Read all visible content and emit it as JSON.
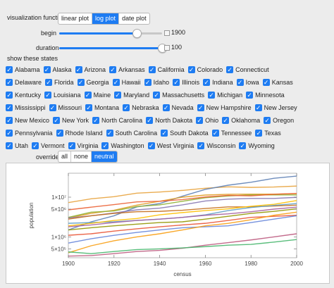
{
  "controls": {
    "viz_label": "visualization function",
    "viz_options": [
      "linear plot",
      "log plot",
      "date plot"
    ],
    "viz_selected": 1,
    "begin_label": "begin",
    "begin_value": "1900",
    "begin_fraction": 0.75,
    "duration_label": "duration",
    "duration_value": "100",
    "duration_fraction": 1.0,
    "states_label": "show these states",
    "override_label": "override",
    "override_options": [
      "all",
      "none",
      "neutral"
    ],
    "override_selected": 2
  },
  "states": [
    [
      "Alabama",
      "Alaska",
      "Arizona",
      "Arkansas",
      "California",
      "Colorado",
      "Connecticut"
    ],
    [
      "Delaware",
      "Florida",
      "Georgia",
      "Hawaii",
      "Idaho",
      "Illinois",
      "Indiana",
      "Iowa",
      "Kansas"
    ],
    [
      "Kentucky",
      "Louisiana",
      "Maine",
      "Maryland",
      "Massachusetts",
      "Michigan",
      "Minnesota"
    ],
    [
      "Mississippi",
      "Missouri",
      "Montana",
      "Nebraska",
      "Nevada",
      "New Hampshire",
      "New Jersey"
    ],
    [
      "New Mexico",
      "New York",
      "North Carolina",
      "North Dakota",
      "Ohio",
      "Oklahoma",
      "Oregon"
    ],
    [
      "Pennsylvania",
      "Rhode Island",
      "South Carolina",
      "South Dakota",
      "Tennessee",
      "Texas"
    ],
    [
      "Utah",
      "Vermont",
      "Virginia",
      "Washington",
      "West Virginia",
      "Wisconsin",
      "Wyoming"
    ]
  ],
  "accent_color": "#1e7cf2",
  "chart_data": {
    "type": "line",
    "xlabel": "census",
    "ylabel": "population",
    "x_ticks": [
      "1900",
      "1920",
      "1940",
      "1960",
      "1980",
      "2000"
    ],
    "y_ticks": [
      "5×10⁵",
      "1×10⁶",
      "5×10⁶",
      "1×10⁷"
    ],
    "y_scale": "log",
    "xlim": [
      1900,
      2000
    ],
    "ylim": [
      300000,
      40000000
    ],
    "x": [
      1900,
      1910,
      1920,
      1930,
      1940,
      1950,
      1960,
      1970,
      1980,
      1990,
      2000
    ],
    "series_colors": [
      "#e8a33d",
      "#5e81b5",
      "#e19c24",
      "#8fb032",
      "#eb6235",
      "#8778b3",
      "#c56e1a",
      "#5d9ec7",
      "#ffbf00",
      "#a5609d",
      "#929600",
      "#e95536",
      "#6685d9",
      "#f89f13",
      "#bc5b80",
      "#47b66d"
    ],
    "series": [
      {
        "values": [
          7300000,
          9100000,
          10300000,
          12600000,
          13500000,
          14800000,
          16800000,
          18200000,
          17600000,
          18000000,
          19000000
        ]
      },
      {
        "values": [
          1500000,
          2400000,
          3400000,
          5700000,
          6900000,
          10600000,
          15700000,
          20000000,
          23700000,
          29800000,
          33900000
        ]
      },
      {
        "values": [
          3000000,
          3900000,
          4700000,
          6300000,
          7900000,
          10000000,
          11300000,
          11800000,
          11900000,
          11900000,
          12300000
        ]
      },
      {
        "values": [
          3100000,
          4200000,
          4500000,
          5800000,
          6400000,
          7900000,
          9700000,
          10700000,
          11400000,
          11400000,
          11400000
        ]
      },
      {
        "values": [
          4800000,
          5600000,
          6500000,
          7600000,
          7900000,
          8700000,
          10100000,
          11100000,
          10800000,
          11800000,
          12400000
        ]
      },
      {
        "values": [
          3000000,
          3400000,
          4000000,
          4800000,
          5300000,
          6400000,
          8000000,
          8900000,
          9300000,
          9300000,
          9900000
        ]
      },
      {
        "values": [
          2800000,
          3400000,
          3900000,
          4300000,
          4400000,
          4700000,
          5200000,
          5700000,
          5700000,
          6000000,
          6300000
        ]
      },
      {
        "values": [
          2200000,
          2300000,
          2400000,
          2600000,
          2800000,
          3100000,
          3600000,
          4600000,
          5500000,
          6200000,
          6900000
        ]
      },
      {
        "values": [
          1900000,
          2200000,
          2600000,
          2900000,
          3600000,
          4100000,
          4600000,
          5100000,
          5900000,
          6600000,
          8200000
        ]
      },
      {
        "values": [
          1800000,
          2000000,
          2300000,
          2600000,
          2800000,
          3100000,
          3500000,
          3800000,
          4300000,
          5000000,
          5600000
        ]
      },
      {
        "values": [
          1500000,
          1700000,
          1900000,
          2100000,
          2300000,
          2400000,
          2800000,
          3300000,
          3900000,
          4400000,
          5100000
        ]
      },
      {
        "values": [
          1100000,
          1200000,
          1400000,
          1600000,
          1800000,
          2000000,
          2200000,
          2600000,
          3100000,
          3300000,
          3500000
        ]
      },
      {
        "values": [
          700000,
          900000,
          1100000,
          1300000,
          1500000,
          1700000,
          1800000,
          1900000,
          2300000,
          2800000,
          3400000
        ]
      },
      {
        "values": [
          400000,
          600000,
          800000,
          1000000,
          1200000,
          1500000,
          1900000,
          2200000,
          2700000,
          3500000,
          4200000
        ]
      },
      {
        "values": [
          330000,
          340000,
          380000,
          430000,
          460000,
          520000,
          620000,
          720000,
          840000,
          1000000,
          1200000
        ]
      },
      {
        "values": [
          420000,
          380000,
          430000,
          480000,
          500000,
          530000,
          570000,
          620000,
          650000,
          740000,
          860000
        ]
      }
    ]
  }
}
